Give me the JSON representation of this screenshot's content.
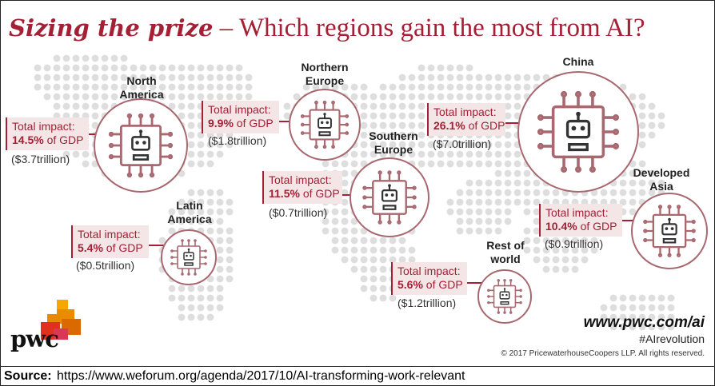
{
  "title": {
    "lead": "Sizing the prize",
    "dash": " – ",
    "rest": "Which regions gain the most from AI?"
  },
  "chart_data": {
    "type": "bubble-map",
    "unit": "% of GDP",
    "regions": [
      {
        "name": "North America",
        "impact_pct": 14.5,
        "impact_trillion_usd": 3.7,
        "box_label": "Total impact:",
        "pct_text": "14.5%",
        "gdp_text": " of GDP",
        "trillion_text": "($3.7trillion)"
      },
      {
        "name": "Northern Europe",
        "impact_pct": 9.9,
        "impact_trillion_usd": 1.8,
        "box_label": "Total impact:",
        "pct_text": "9.9%",
        "gdp_text": " of GDP",
        "trillion_text": "($1.8trillion)"
      },
      {
        "name": "China",
        "impact_pct": 26.1,
        "impact_trillion_usd": 7.0,
        "box_label": "Total impact:",
        "pct_text": "26.1%",
        "gdp_text": " of GDP",
        "trillion_text": "($7.0trillion)"
      },
      {
        "name": "Southern Europe",
        "impact_pct": 11.5,
        "impact_trillion_usd": 0.7,
        "box_label": "Total impact:",
        "pct_text": "11.5%",
        "gdp_text": " of GDP",
        "trillion_text": "($0.7trillion)"
      },
      {
        "name": "Developed Asia",
        "impact_pct": 10.4,
        "impact_trillion_usd": 0.9,
        "box_label": "Total impact:",
        "pct_text": "10.4%",
        "gdp_text": " of GDP",
        "trillion_text": "($0.9trillion)"
      },
      {
        "name": "Latin America",
        "impact_pct": 5.4,
        "impact_trillion_usd": 0.5,
        "box_label": "Total impact:",
        "pct_text": "5.4%",
        "gdp_text": " of GDP",
        "trillion_text": "($0.5trillion)"
      },
      {
        "name": "Rest of world",
        "impact_pct": 5.6,
        "impact_trillion_usd": 1.2,
        "box_label": "Total impact:",
        "pct_text": "5.6%",
        "gdp_text": " of GDP",
        "trillion_text": "($1.2trillion)"
      }
    ]
  },
  "labels": {
    "north_america": "North\nAmerica",
    "northern_europe": "Northern\nEurope",
    "china": "China",
    "southern_europe": "Southern\nEurope",
    "developed_asia": "Developed\nAsia",
    "latin_america": "Latin\nAmerica",
    "rest_of_world": "Rest of\nworld"
  },
  "footer": {
    "url": "www.pwc.com/ai",
    "hashtag": "#AIrevolution",
    "copyright": "© 2017 PricewaterhouseCoopers LLP. All rights reserved.",
    "logo_text": "pwc"
  },
  "source": {
    "label": "Source:",
    "url": "https://www.weforum.org/agenda/2017/10/AI-transforming-work-relevant"
  },
  "colors": {
    "accent": "#a32035",
    "box_bg": "#f4e6e6",
    "circle_border": "#a86870",
    "map_dots": "#dedede"
  }
}
